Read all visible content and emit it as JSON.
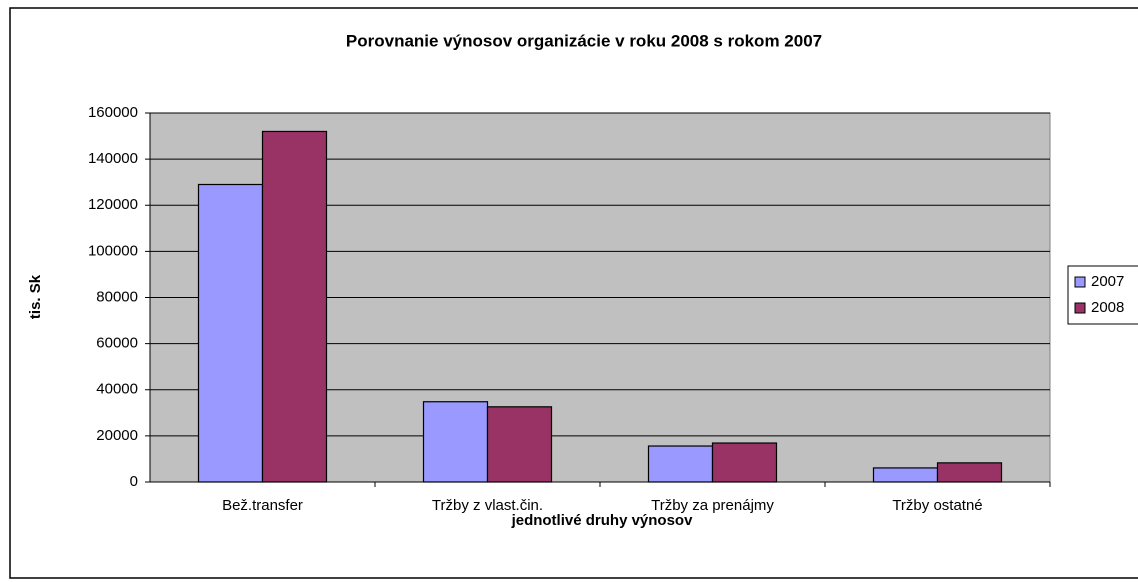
{
  "chart_data": {
    "type": "bar",
    "title": "Porovnanie výnosov organizácie v roku 2008 s rokom 2007",
    "x_label": "jednotlivé druhy výnosov",
    "y_label": "tis. Sk",
    "categories": [
      "Bež.transfer",
      "Tržby z vlast.čin.",
      "Tržby za prenájmy",
      "Tržby ostatné"
    ],
    "series": [
      {
        "name": "2007",
        "color": "#9999ff",
        "values": [
          129000,
          34800,
          15600,
          6100
        ]
      },
      {
        "name": "2008",
        "color": "#993366",
        "values": [
          152000,
          32600,
          16900,
          8300
        ]
      }
    ],
    "ylim": [
      0,
      160000
    ],
    "yticks": [
      0,
      20000,
      40000,
      60000,
      80000,
      100000,
      120000,
      140000,
      160000
    ],
    "grid": true,
    "legend": "right"
  }
}
